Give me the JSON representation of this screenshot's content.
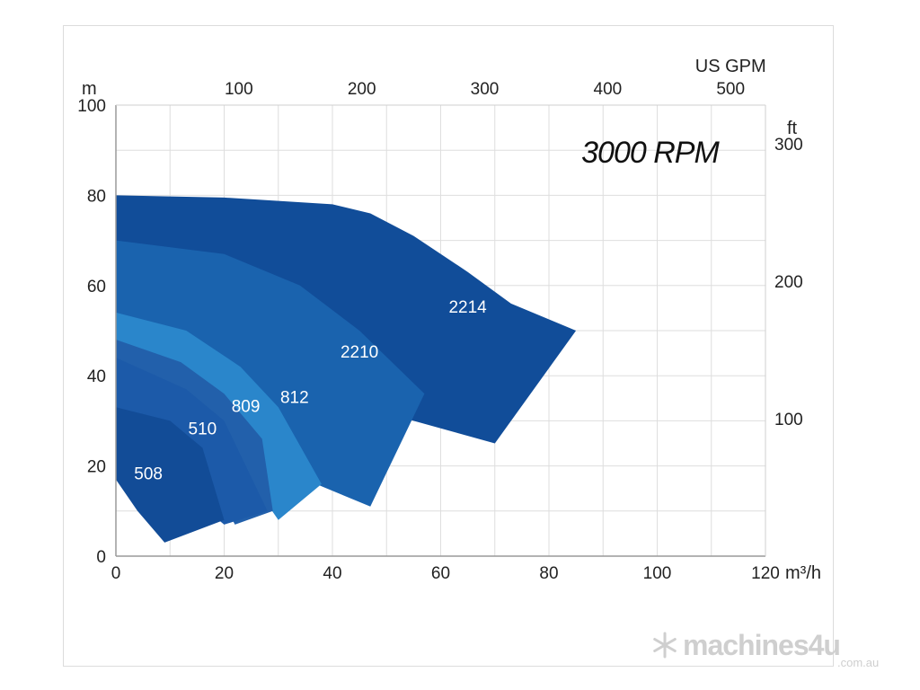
{
  "chart_data": {
    "type": "area",
    "title": "3000 RPM",
    "x_bottom": {
      "unit": "m³/h",
      "range": [
        0,
        120
      ],
      "ticks": [
        "0",
        "20",
        "40",
        "60",
        "80",
        "100",
        "120"
      ]
    },
    "x_top": {
      "unit": "US GPM",
      "ticks": [
        "100",
        "200",
        "300",
        "400",
        "500"
      ],
      "tick_values": [
        100,
        200,
        300,
        400,
        500
      ]
    },
    "y_left": {
      "unit": "m",
      "range": [
        0,
        100
      ],
      "ticks": [
        "0",
        "20",
        "40",
        "60",
        "80",
        "100"
      ]
    },
    "y_right": {
      "unit": "ft",
      "ticks": [
        "100",
        "200",
        "300"
      ],
      "tick_values": [
        100,
        200,
        300
      ]
    },
    "grid": true,
    "series": [
      {
        "name": "2214",
        "color": "#114d99",
        "polygon": [
          [
            0,
            80
          ],
          [
            20,
            79.5
          ],
          [
            40,
            78
          ],
          [
            47,
            76
          ],
          [
            55,
            71
          ],
          [
            65,
            63
          ],
          [
            73,
            56
          ],
          [
            85,
            50
          ],
          [
            70,
            25
          ],
          [
            40,
            35
          ],
          [
            47,
            40
          ],
          [
            0,
            70
          ]
        ]
      },
      {
        "name": "2210",
        "color": "#1a63ae",
        "polygon": [
          [
            0,
            70
          ],
          [
            20,
            67
          ],
          [
            34,
            60
          ],
          [
            45,
            50
          ],
          [
            57,
            36
          ],
          [
            47,
            11
          ],
          [
            37,
            16
          ],
          [
            30,
            25
          ],
          [
            20,
            38
          ],
          [
            0,
            54
          ]
        ]
      },
      {
        "name": "812",
        "color": "#2a86cb",
        "polygon": [
          [
            0,
            54
          ],
          [
            13,
            50
          ],
          [
            23,
            42
          ],
          [
            30,
            33
          ],
          [
            38,
            16
          ],
          [
            30,
            8
          ],
          [
            26,
            15
          ],
          [
            20,
            24
          ],
          [
            0,
            44
          ]
        ]
      },
      {
        "name": "809",
        "color": "#2260ab",
        "polygon": [
          [
            0,
            48
          ],
          [
            12,
            43
          ],
          [
            20,
            36
          ],
          [
            27,
            26
          ],
          [
            29,
            10
          ],
          [
            22,
            7
          ],
          [
            18,
            16
          ],
          [
            0,
            33
          ]
        ]
      },
      {
        "name": "510",
        "color": "#1c5aa9",
        "polygon": [
          [
            0,
            44
          ],
          [
            13,
            37
          ],
          [
            20,
            30
          ],
          [
            28,
            10
          ],
          [
            20,
            7
          ],
          [
            14,
            13
          ],
          [
            0,
            33
          ]
        ]
      },
      {
        "name": "508",
        "color": "#124c97",
        "polygon": [
          [
            0,
            33
          ],
          [
            10,
            30
          ],
          [
            16,
            24
          ],
          [
            20,
            8
          ],
          [
            9,
            3
          ],
          [
            4,
            10
          ],
          [
            0,
            17
          ]
        ]
      }
    ]
  },
  "watermark": {
    "brand": "machines4u",
    "domain": ".com.au"
  }
}
